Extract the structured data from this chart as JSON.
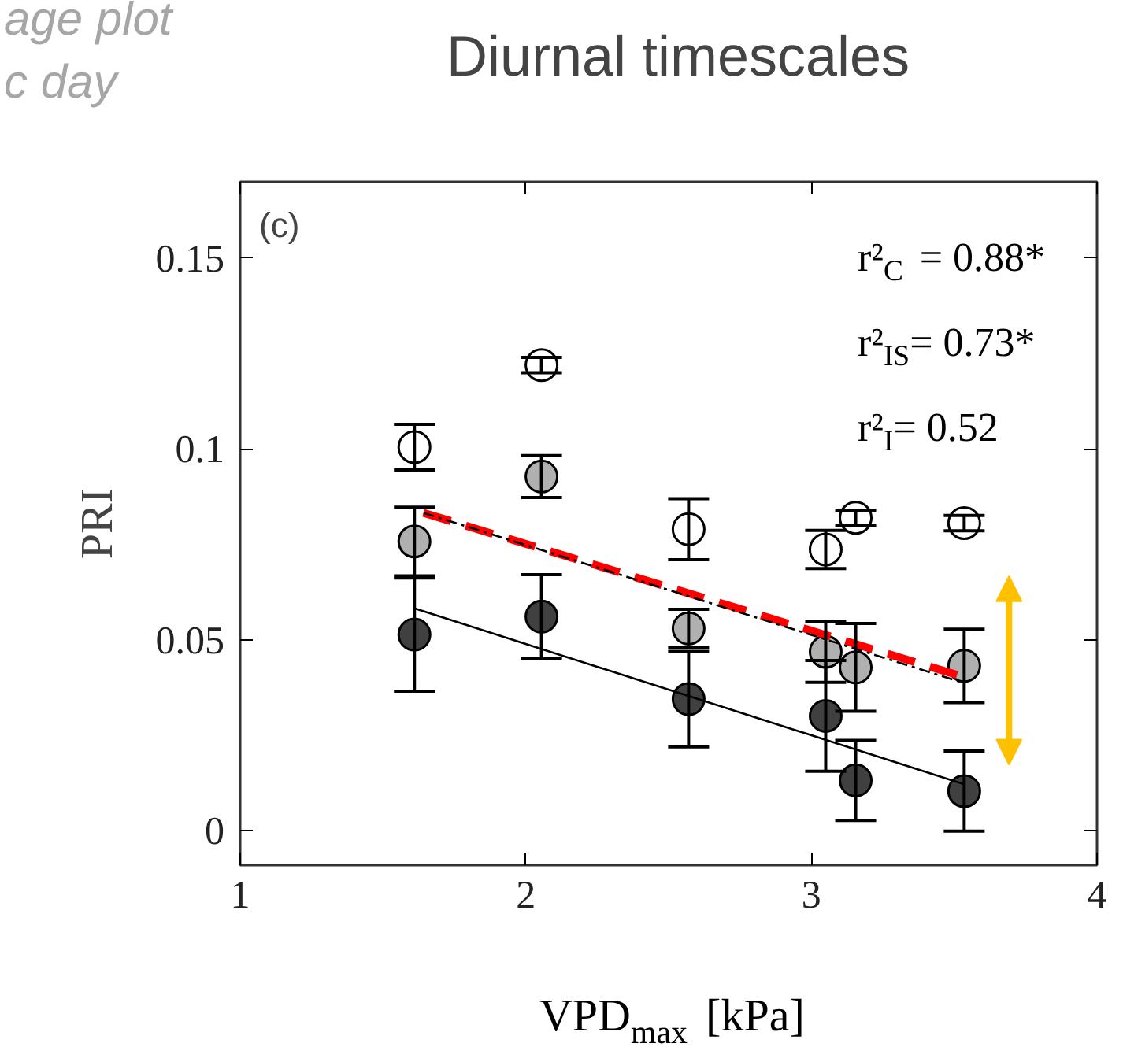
{
  "chart_data": {
    "type": "scatter",
    "title": "Diurnal timescales",
    "xlabel": "VPD$_{max}$ [kPa]",
    "ylabel": "PRI",
    "annotations": [
      "age plot",
      "c day",
      "(c)",
      "r²$_{C}$ = 0.88*",
      "r²$_{IS}$= 0.73*",
      "r²$_{I}$= 0.52"
    ],
    "xlim": [
      1,
      4
    ],
    "ylim": [
      -0.009,
      0.17
    ],
    "xticks": [
      1,
      2,
      3,
      4
    ],
    "yticks": [
      0,
      {
        "value": 0.05,
        "label": "0.05"
      },
      {
        "value": 0.1,
        "label": "0.1"
      },
      {
        "value": 0.15,
        "label": "0.15"
      }
    ],
    "x": [
      1.61,
      2.055,
      2.57,
      3.05,
      3.155,
      3.535
    ],
    "marker": "circle",
    "grid": false,
    "series": [
      {
        "type": "line",
        "color": "#ff0000",
        "line_style": "dashed",
        "marker": "none",
        "x": [
          1.642,
          3.56
        ],
        "values": [
          0.0833,
          0.0397
        ]
      },
      {
        "type": "line",
        "color": "#000000",
        "line_style": "dashed",
        "marker": "none",
        "x": [
          1.642,
          3.535
        ],
        "values": [
          0.0833,
          0.0387
        ]
      },
      {
        "type": "line",
        "color": "#000000",
        "line_style": "solid",
        "marker": "none",
        "x": [
          1.61,
          3.535
        ],
        "values": [
          0.0583,
          0.0122
        ]
      },
      {
        "color": "#ffffff",
        "values": [
          0.1005,
          0.122,
          0.079,
          0.0737,
          0.082,
          0.0806
        ],
        "errors": [
          0.006,
          0.002,
          0.008,
          0.005,
          0.002,
          0.002
        ]
      },
      {
        "color": "#b0b0b0",
        "values": [
          0.0758,
          0.0928,
          0.053,
          0.0469,
          0.0428,
          0.0432
        ],
        "errors": [
          0.009,
          0.0055,
          0.005,
          0.008,
          0.0115,
          0.0096
        ]
      },
      {
        "color": "#404040",
        "values": [
          0.0514,
          0.0561,
          0.0345,
          0.0301,
          0.0132,
          0.0104
        ],
        "errors": [
          0.0148,
          0.011,
          0.0125,
          0.0145,
          0.0105,
          0.0105
        ]
      }
    ]
  }
}
